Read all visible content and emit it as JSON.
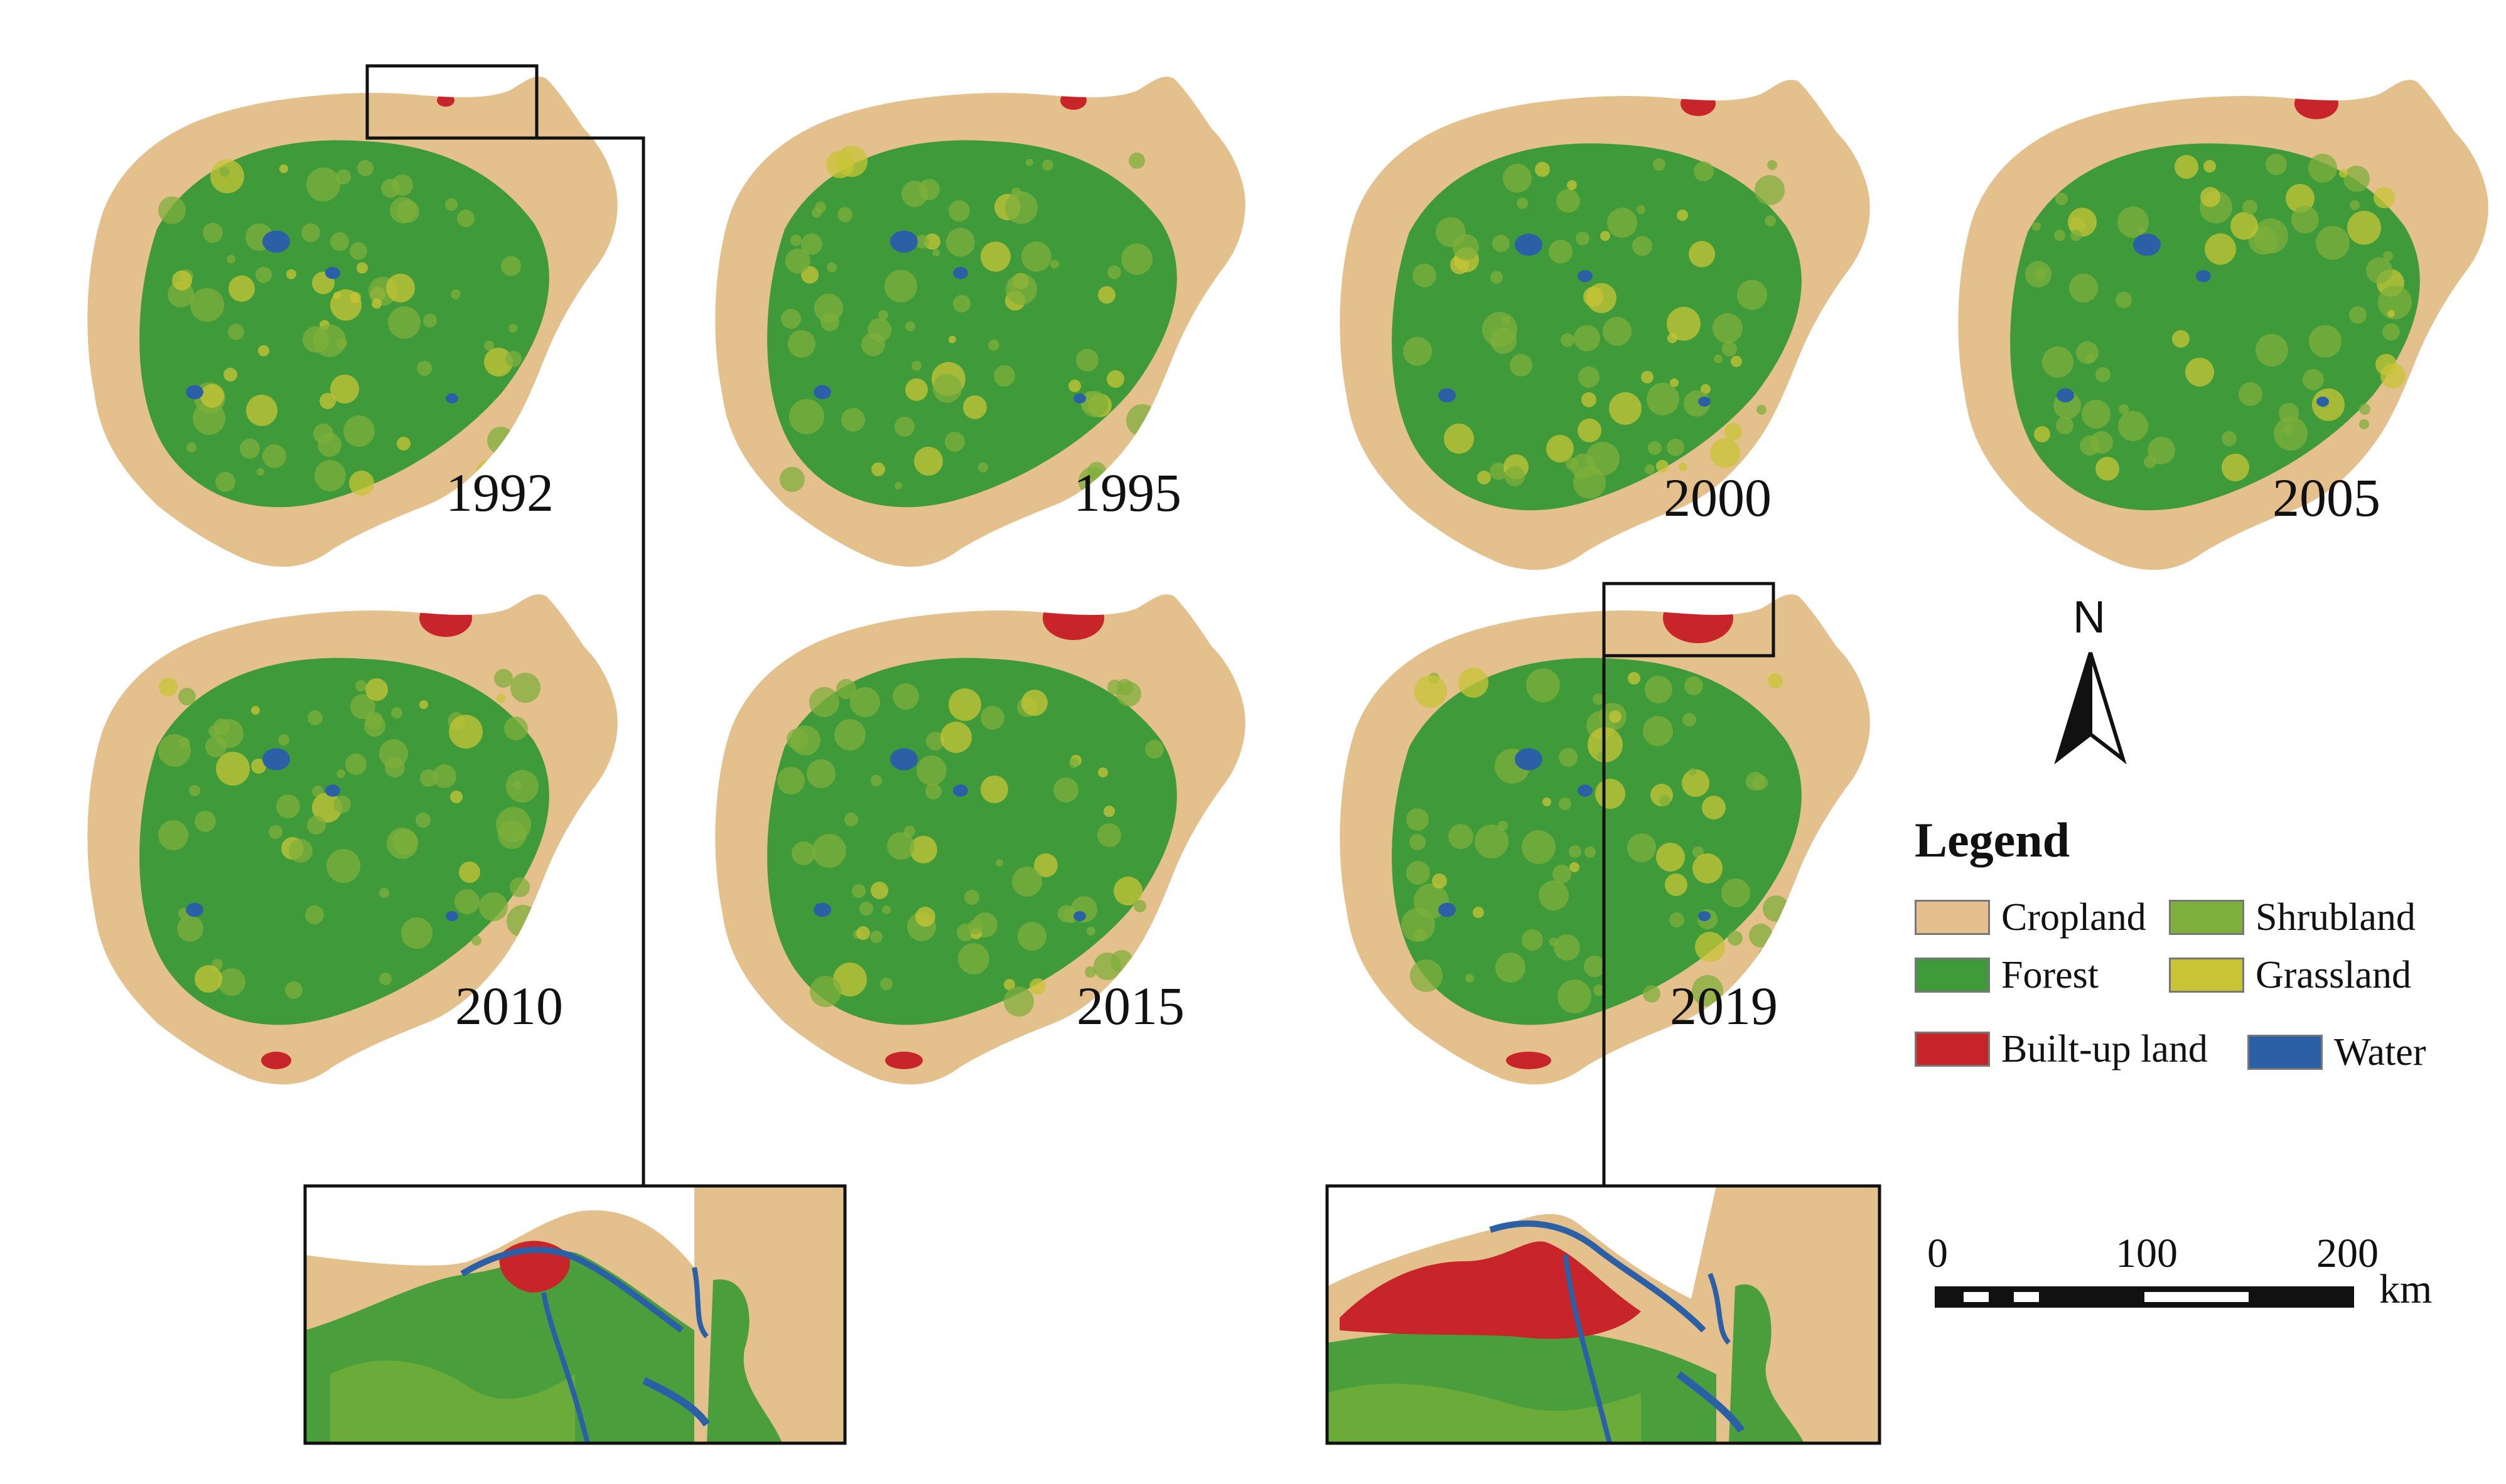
{
  "maps": [
    {
      "year": "1992"
    },
    {
      "year": "1995"
    },
    {
      "year": "2000"
    },
    {
      "year": "2005"
    },
    {
      "year": "2010"
    },
    {
      "year": "2015"
    },
    {
      "year": "2019"
    }
  ],
  "legend": {
    "title": "Legend",
    "items": [
      {
        "label": "Cropland",
        "color": "#e3c08c"
      },
      {
        "label": "Shrubland",
        "color": "#7faf3c"
      },
      {
        "label": "Forest",
        "color": "#3f9a3a"
      },
      {
        "label": "Grassland",
        "color": "#c8c436"
      },
      {
        "label": "Built-up land",
        "color": "#c8252b"
      },
      {
        "label": "Water",
        "color": "#2b5fa6"
      }
    ]
  },
  "north_arrow": {
    "label": "N"
  },
  "scale_bar": {
    "ticks": [
      "0",
      "100",
      "200"
    ],
    "unit": "km"
  },
  "insets": [
    {
      "source_year": "1992"
    },
    {
      "source_year": "2019"
    }
  ]
}
